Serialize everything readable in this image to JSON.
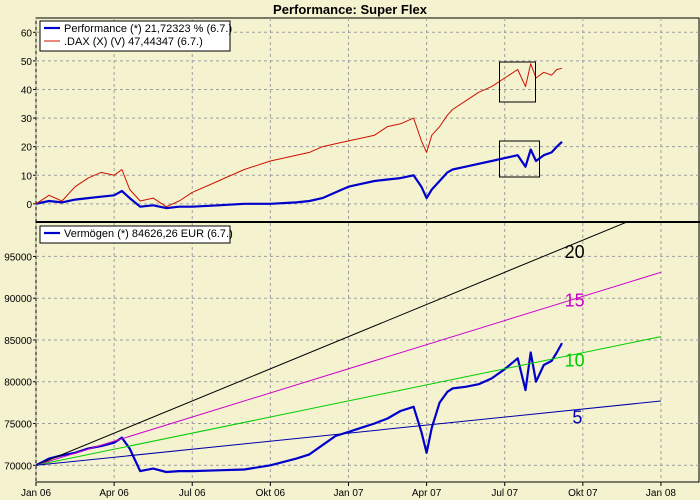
{
  "title": "Performance: Super Flex",
  "colors": {
    "background": "#f5f2cf",
    "grid": "#9e9e9e",
    "performance": "#0000cc",
    "dax": "#cc1100",
    "vermoegen": "#0000cc",
    "rate20": "#000000",
    "rate15": "#cc00cc",
    "rate10": "#00cc00",
    "rate5": "#0000aa"
  },
  "x_ticks": [
    "Jan 06",
    "Apr 06",
    "Jul 06",
    "Okt 06",
    "Jan 07",
    "Apr 07",
    "Jul 07",
    "Okt 07",
    "Jan 08"
  ],
  "chart_data": [
    {
      "type": "line",
      "title": "Performance: Super Flex",
      "xlabel": "",
      "ylabel": "",
      "ylim": [
        -6,
        65
      ],
      "y_ticks": [
        0,
        10,
        20,
        30,
        40,
        50,
        60
      ],
      "grid": true,
      "legend_position": "top-left",
      "x_unit": "months since Jan 06",
      "series": [
        {
          "name": "Performance (*) 21,72323 % (6.7.)",
          "color": "#0000cc",
          "x": [
            0,
            0.5,
            1,
            1.5,
            2,
            2.5,
            3,
            3.3,
            3.6,
            4,
            4.5,
            5,
            5.5,
            6,
            7,
            8,
            9,
            10,
            10.5,
            11,
            11.5,
            12,
            12.5,
            13,
            13.5,
            14,
            14.5,
            14.8,
            15,
            15.2,
            15.5,
            15.8,
            16,
            16.5,
            17,
            17.5,
            18,
            18.5,
            18.8,
            19,
            19.2,
            19.5,
            19.8,
            20,
            20.2
          ],
          "values": [
            0,
            1,
            0.5,
            1.5,
            2,
            2.5,
            3,
            4.5,
            2,
            -1,
            -0.5,
            -1.5,
            -1,
            -1,
            -0.5,
            0,
            0,
            0.5,
            1,
            2,
            4,
            6,
            7,
            8,
            8.5,
            9,
            10,
            6,
            2,
            5,
            8,
            11,
            12,
            13,
            14,
            15,
            16,
            17,
            13,
            19,
            15,
            17,
            18,
            20,
            21.7
          ]
        },
        {
          "name": ".DAX (X) (V) 47,44347 (6.7.)",
          "color": "#cc1100",
          "x": [
            0,
            0.5,
            1,
            1.5,
            2,
            2.5,
            3,
            3.3,
            3.6,
            4,
            4.5,
            5,
            5.5,
            6,
            7,
            8,
            9,
            10,
            10.5,
            11,
            11.5,
            12,
            12.5,
            13,
            13.5,
            14,
            14.5,
            14.8,
            15,
            15.2,
            15.5,
            15.8,
            16,
            16.5,
            17,
            17.5,
            18,
            18.5,
            18.8,
            19,
            19.2,
            19.5,
            19.8,
            20,
            20.2
          ],
          "values": [
            0,
            3,
            1,
            6,
            9,
            11,
            10,
            12,
            5,
            1,
            2,
            -1,
            1,
            4,
            8,
            12,
            15,
            17,
            18,
            20,
            21,
            22,
            23,
            24,
            27,
            28,
            30,
            22,
            18,
            24,
            27,
            31,
            33,
            36,
            39,
            41,
            44,
            47,
            41,
            49,
            44,
            46,
            45,
            47,
            47.4
          ]
        }
      ]
    },
    {
      "type": "line",
      "title": "",
      "xlabel": "",
      "ylabel": "",
      "ylim": [
        68000,
        99000
      ],
      "y_ticks": [
        70000,
        75000,
        80000,
        85000,
        90000,
        95000
      ],
      "grid": true,
      "legend_position": "top-left",
      "x_unit": "months since Jan 06",
      "series": [
        {
          "name": "Vermögen (*) 84626,26 EUR (6.7.)",
          "color": "#0000cc",
          "x": [
            0,
            0.5,
            1,
            1.5,
            2,
            2.5,
            3,
            3.3,
            3.6,
            4,
            4.5,
            5,
            5.5,
            6,
            7,
            8,
            9,
            10,
            10.5,
            11,
            11.5,
            12,
            12.5,
            13,
            13.5,
            14,
            14.5,
            14.8,
            15,
            15.2,
            15.5,
            15.8,
            16,
            16.5,
            17,
            17.5,
            18,
            18.5,
            18.8,
            19,
            19.2,
            19.5,
            19.8,
            20,
            20.2
          ],
          "values": [
            70000,
            70800,
            71200,
            71500,
            72000,
            72300,
            72700,
            73300,
            72000,
            69300,
            69600,
            69200,
            69300,
            69300,
            69400,
            69500,
            70000,
            70800,
            71300,
            72400,
            73500,
            74000,
            74500,
            75000,
            75600,
            76500,
            77000,
            74000,
            71500,
            74500,
            77500,
            78800,
            79200,
            79400,
            79700,
            80400,
            81500,
            82800,
            79000,
            83500,
            80000,
            82000,
            82500,
            83500,
            84626
          ]
        },
        {
          "name": "",
          "color": "#000000",
          "x": [
            0,
            24
          ],
          "values": [
            70000,
            100800
          ]
        },
        {
          "name": "",
          "color": "#cc00cc",
          "x": [
            0,
            24
          ],
          "values": [
            70000,
            93100
          ]
        },
        {
          "name": "",
          "color": "#00cc00",
          "x": [
            0,
            24
          ],
          "values": [
            70000,
            85400
          ]
        },
        {
          "name": "",
          "color": "#0000aa",
          "x": [
            0,
            24
          ],
          "values": [
            70000,
            77700
          ]
        }
      ],
      "annotations": [
        {
          "text": "20",
          "color": "#000000",
          "x": 20.3,
          "y": 94800
        },
        {
          "text": "15",
          "color": "#cc00cc",
          "x": 20.3,
          "y": 89000
        },
        {
          "text": "10",
          "color": "#00cc00",
          "x": 20.3,
          "y": 81800
        },
        {
          "text": "5",
          "color": "#0000aa",
          "x": 20.6,
          "y": 75000
        }
      ]
    }
  ]
}
